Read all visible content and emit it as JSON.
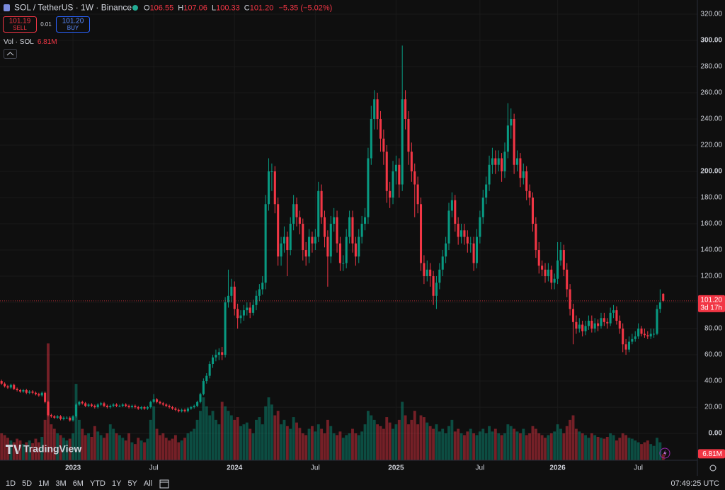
{
  "chart_data": {
    "type": "candlestick",
    "header": {
      "symbol": "SOL / TetherUS · 1W · Binance",
      "open_label": "O",
      "open": "106.55",
      "high_label": "H",
      "high": "107.06",
      "low_label": "L",
      "low": "100.33",
      "close_label": "C",
      "close": "101.20",
      "change": "−5.35 (−5.02%)",
      "sell_price": "101.19",
      "sell": "SELL",
      "spread": "0.01",
      "buy_price": "101.20",
      "buy": "BUY"
    },
    "volume_title": "Vol · SOL",
    "volume_label": "6.81M",
    "price_label": "101.20",
    "countdown": "3d 17h",
    "brand": "TradingView",
    "up_color": "#089981",
    "down_color": "#f23645",
    "ylim": [
      -20.5,
      330.8
    ],
    "yticks": [
      {
        "value": 0,
        "label": "0.00"
      },
      {
        "value": 20,
        "label": "20.00"
      },
      {
        "value": 40,
        "label": "40.00"
      },
      {
        "value": 60,
        "label": "60.00"
      },
      {
        "value": 80,
        "label": "80.00"
      },
      {
        "value": 100,
        "label": "100.00"
      },
      {
        "value": 120,
        "label": "120.00"
      },
      {
        "value": 140,
        "label": "140.00"
      },
      {
        "value": 160,
        "label": "160.00"
      },
      {
        "value": 180,
        "label": "180.00"
      },
      {
        "value": 200,
        "label": "200.00"
      },
      {
        "value": 220,
        "label": "220.00"
      },
      {
        "value": 240,
        "label": "240.00"
      },
      {
        "value": 260,
        "label": "260.00"
      },
      {
        "value": 280,
        "label": "280.00"
      },
      {
        "value": 300,
        "label": "300.00"
      },
      {
        "value": 320,
        "label": "320.00"
      }
    ],
    "xlim": [
      -0.5,
      224
    ],
    "xticks": [
      {
        "value": 23,
        "label": "2023"
      },
      {
        "value": 49,
        "label": "Jul"
      },
      {
        "value": 75,
        "label": "2024"
      },
      {
        "value": 101,
        "label": "Jul"
      },
      {
        "value": 127,
        "label": "2025"
      },
      {
        "value": 154,
        "label": "Jul"
      },
      {
        "value": 179,
        "label": "2026"
      },
      {
        "value": 205,
        "label": "Jul"
      }
    ],
    "ohlc": [
      [
        40,
        41,
        37,
        38
      ],
      [
        38,
        39,
        35,
        36
      ],
      [
        36,
        37,
        34,
        35
      ],
      [
        35,
        38,
        34,
        37
      ],
      [
        37,
        38,
        33,
        34
      ],
      [
        34,
        35,
        32,
        33
      ],
      [
        33,
        34,
        31,
        32
      ],
      [
        32,
        34,
        31,
        33
      ],
      [
        33,
        34,
        30,
        31
      ],
      [
        31,
        33,
        30,
        32
      ],
      [
        32,
        33,
        30,
        31
      ],
      [
        31,
        32,
        29,
        30
      ],
      [
        30,
        31,
        28,
        29
      ],
      [
        29,
        32,
        28,
        31
      ],
      [
        31,
        32,
        23,
        24
      ],
      [
        24,
        25,
        13,
        14
      ],
      [
        14,
        15,
        12,
        13
      ],
      [
        13,
        14,
        11,
        12
      ],
      [
        12,
        14,
        11,
        13
      ],
      [
        13,
        14,
        10,
        11
      ],
      [
        11,
        13,
        10,
        12
      ],
      [
        12,
        13,
        11,
        12
      ],
      [
        12,
        13,
        9,
        10
      ],
      [
        10,
        14,
        9,
        13
      ],
      [
        13,
        23,
        12,
        22
      ],
      [
        22,
        25,
        21,
        24
      ],
      [
        24,
        25,
        22,
        23
      ],
      [
        23,
        24,
        20,
        21
      ],
      [
        21,
        23,
        20,
        22
      ],
      [
        22,
        23,
        20,
        21
      ],
      [
        21,
        22,
        19,
        20
      ],
      [
        20,
        23,
        19,
        22
      ],
      [
        22,
        24,
        21,
        23
      ],
      [
        23,
        24,
        20,
        21
      ],
      [
        21,
        22,
        19,
        20
      ],
      [
        20,
        22,
        19,
        21
      ],
      [
        21,
        23,
        20,
        22
      ],
      [
        22,
        23,
        20,
        21
      ],
      [
        21,
        22,
        20,
        21
      ],
      [
        21,
        23,
        20,
        22
      ],
      [
        22,
        23,
        20,
        21
      ],
      [
        21,
        22,
        19,
        20
      ],
      [
        20,
        22,
        19,
        21
      ],
      [
        21,
        22,
        19,
        20
      ],
      [
        20,
        21,
        18,
        19
      ],
      [
        19,
        21,
        18,
        20
      ],
      [
        20,
        21,
        18,
        19
      ],
      [
        19,
        21,
        18,
        20
      ],
      [
        20,
        25,
        19,
        24
      ],
      [
        24,
        30,
        23,
        26
      ],
      [
        26,
        27,
        23,
        24
      ],
      [
        24,
        25,
        22,
        23
      ],
      [
        23,
        24,
        21,
        22
      ],
      [
        22,
        23,
        20,
        21
      ],
      [
        21,
        22,
        19,
        20
      ],
      [
        20,
        21,
        18,
        19
      ],
      [
        19,
        20,
        17,
        18
      ],
      [
        18,
        19,
        16,
        17
      ],
      [
        17,
        19,
        16,
        18
      ],
      [
        18,
        19,
        16,
        17
      ],
      [
        17,
        20,
        16,
        19
      ],
      [
        19,
        21,
        18,
        20
      ],
      [
        20,
        22,
        19,
        21
      ],
      [
        21,
        25,
        20,
        24
      ],
      [
        24,
        31,
        23,
        30
      ],
      [
        30,
        42,
        29,
        40
      ],
      [
        40,
        46,
        38,
        44
      ],
      [
        44,
        55,
        42,
        53
      ],
      [
        53,
        60,
        50,
        58
      ],
      [
        58,
        64,
        55,
        60
      ],
      [
        60,
        65,
        56,
        62
      ],
      [
        62,
        66,
        56,
        60
      ],
      [
        60,
        104,
        58,
        100
      ],
      [
        100,
        125,
        96,
        105
      ],
      [
        105,
        118,
        100,
        112
      ],
      [
        112,
        116,
        90,
        95
      ],
      [
        95,
        99,
        80,
        88
      ],
      [
        88,
        94,
        84,
        90
      ],
      [
        90,
        98,
        86,
        94
      ],
      [
        94,
        100,
        90,
        96
      ],
      [
        96,
        100,
        88,
        92
      ],
      [
        92,
        102,
        90,
        98
      ],
      [
        98,
        109,
        94,
        105
      ],
      [
        105,
        114,
        101,
        110
      ],
      [
        110,
        120,
        106,
        115
      ],
      [
        115,
        182,
        110,
        175
      ],
      [
        175,
        210,
        170,
        200
      ],
      [
        200,
        206,
        185,
        200
      ],
      [
        200,
        204,
        168,
        175
      ],
      [
        175,
        180,
        128,
        135
      ],
      [
        135,
        150,
        128,
        145
      ],
      [
        145,
        158,
        138,
        150
      ],
      [
        150,
        154,
        120,
        140
      ],
      [
        140,
        165,
        136,
        160
      ],
      [
        160,
        182,
        155,
        175
      ],
      [
        175,
        180,
        158,
        165
      ],
      [
        165,
        170,
        152,
        160
      ],
      [
        160,
        164,
        132,
        140
      ],
      [
        140,
        146,
        128,
        135
      ],
      [
        135,
        156,
        130,
        150
      ],
      [
        150,
        154,
        138,
        145
      ],
      [
        145,
        156,
        140,
        150
      ],
      [
        150,
        192,
        146,
        185
      ],
      [
        185,
        190,
        160,
        165
      ],
      [
        165,
        170,
        142,
        150
      ],
      [
        150,
        155,
        112,
        135
      ],
      [
        135,
        166,
        130,
        160
      ],
      [
        160,
        172,
        154,
        165
      ],
      [
        165,
        170,
        138,
        145
      ],
      [
        145,
        150,
        124,
        130
      ],
      [
        130,
        136,
        124,
        130
      ],
      [
        130,
        156,
        126,
        150
      ],
      [
        150,
        170,
        145,
        165
      ],
      [
        165,
        170,
        138,
        145
      ],
      [
        145,
        150,
        128,
        135
      ],
      [
        135,
        156,
        130,
        150
      ],
      [
        150,
        166,
        145,
        160
      ],
      [
        160,
        172,
        155,
        165
      ],
      [
        165,
        218,
        160,
        210
      ],
      [
        210,
        250,
        205,
        240
      ],
      [
        240,
        262,
        232,
        255
      ],
      [
        255,
        260,
        232,
        240
      ],
      [
        240,
        246,
        215,
        225
      ],
      [
        225,
        232,
        205,
        215
      ],
      [
        215,
        220,
        176,
        185
      ],
      [
        185,
        192,
        172,
        180
      ],
      [
        180,
        208,
        175,
        200
      ],
      [
        200,
        212,
        190,
        205
      ],
      [
        205,
        210,
        180,
        190
      ],
      [
        190,
        296,
        185,
        255
      ],
      [
        255,
        262,
        232,
        240
      ],
      [
        240,
        246,
        205,
        215
      ],
      [
        215,
        222,
        192,
        200
      ],
      [
        200,
        206,
        165,
        190
      ],
      [
        190,
        196,
        168,
        175
      ],
      [
        175,
        180,
        124,
        130
      ],
      [
        130,
        136,
        114,
        120
      ],
      [
        120,
        132,
        116,
        125
      ],
      [
        125,
        130,
        112,
        120
      ],
      [
        120,
        124,
        98,
        105
      ],
      [
        105,
        120,
        95,
        115
      ],
      [
        115,
        130,
        110,
        125
      ],
      [
        125,
        140,
        120,
        135
      ],
      [
        135,
        150,
        130,
        145
      ],
      [
        145,
        176,
        140,
        170
      ],
      [
        170,
        184,
        165,
        178
      ],
      [
        178,
        182,
        154,
        160
      ],
      [
        160,
        165,
        144,
        150
      ],
      [
        150,
        160,
        145,
        155
      ],
      [
        155,
        160,
        144,
        150
      ],
      [
        150,
        155,
        138,
        145
      ],
      [
        145,
        150,
        138,
        145
      ],
      [
        145,
        150,
        124,
        130
      ],
      [
        130,
        156,
        126,
        150
      ],
      [
        150,
        170,
        145,
        165
      ],
      [
        165,
        186,
        160,
        180
      ],
      [
        180,
        196,
        175,
        190
      ],
      [
        190,
        212,
        185,
        205
      ],
      [
        205,
        218,
        198,
        210
      ],
      [
        210,
        216,
        198,
        205
      ],
      [
        205,
        216,
        200,
        210
      ],
      [
        210,
        214,
        192,
        200
      ],
      [
        200,
        222,
        195,
        215
      ],
      [
        215,
        252,
        210,
        235
      ],
      [
        235,
        248,
        225,
        240
      ],
      [
        240,
        244,
        198,
        205
      ],
      [
        205,
        216,
        200,
        210
      ],
      [
        210,
        214,
        188,
        195
      ],
      [
        195,
        206,
        190,
        200
      ],
      [
        200,
        204,
        178,
        185
      ],
      [
        185,
        190,
        174,
        180
      ],
      [
        180,
        184,
        154,
        160
      ],
      [
        160,
        165,
        134,
        140
      ],
      [
        140,
        146,
        122,
        128
      ],
      [
        128,
        132,
        120,
        125
      ],
      [
        125,
        130,
        115,
        120
      ],
      [
        120,
        130,
        116,
        125
      ],
      [
        125,
        128,
        110,
        115
      ],
      [
        115,
        122,
        110,
        118
      ],
      [
        118,
        146,
        114,
        132
      ],
      [
        132,
        146,
        128,
        140
      ],
      [
        140,
        144,
        120,
        125
      ],
      [
        125,
        130,
        104,
        110
      ],
      [
        110,
        114,
        90,
        95
      ],
      [
        95,
        99,
        68,
        85
      ],
      [
        85,
        90,
        76,
        80
      ],
      [
        80,
        88,
        77,
        83
      ],
      [
        83,
        86,
        74,
        78
      ],
      [
        78,
        86,
        75,
        82
      ],
      [
        82,
        90,
        79,
        86
      ],
      [
        86,
        90,
        77,
        80
      ],
      [
        80,
        88,
        77,
        84
      ],
      [
        84,
        87,
        78,
        82
      ],
      [
        82,
        92,
        80,
        88
      ],
      [
        88,
        92,
        82,
        85
      ],
      [
        85,
        88,
        80,
        84
      ],
      [
        84,
        96,
        82,
        92
      ],
      [
        92,
        98,
        88,
        94
      ],
      [
        94,
        97,
        83,
        86
      ],
      [
        86,
        90,
        76,
        80
      ],
      [
        80,
        84,
        62,
        68
      ],
      [
        68,
        72,
        60,
        64
      ],
      [
        64,
        74,
        62,
        70
      ],
      [
        70,
        76,
        68,
        72
      ],
      [
        72,
        78,
        70,
        74
      ],
      [
        74,
        84,
        72,
        80
      ],
      [
        80,
        82,
        74,
        76
      ],
      [
        76,
        80,
        73,
        75
      ],
      [
        75,
        78,
        72,
        74
      ],
      [
        74,
        80,
        72,
        76
      ],
      [
        76,
        80,
        73,
        76
      ],
      [
        76,
        98,
        75,
        95
      ],
      [
        95,
        110,
        92,
        100
      ],
      [
        106.55,
        107.06,
        100.33,
        101.2
      ]
    ],
    "volume": [
      30,
      28,
      25,
      22,
      20,
      24,
      22,
      18,
      20,
      22,
      19,
      24,
      20,
      26,
      45,
      130,
      40,
      35,
      30,
      28,
      25,
      22,
      24,
      30,
      85,
      45,
      35,
      28,
      30,
      26,
      38,
      32,
      28,
      25,
      30,
      40,
      35,
      30,
      28,
      25,
      22,
      30,
      20,
      18,
      25,
      22,
      20,
      24,
      45,
      60,
      35,
      28,
      30,
      25,
      22,
      24,
      28,
      20,
      22,
      25,
      30,
      32,
      35,
      45,
      55,
      70,
      60,
      50,
      55,
      45,
      40,
      65,
      60,
      55,
      50,
      45,
      48,
      38,
      40,
      42,
      35,
      30,
      45,
      48,
      40,
      60,
      70,
      62,
      50,
      55,
      40,
      45,
      38,
      35,
      48,
      42,
      36,
      30,
      28,
      35,
      38,
      32,
      40,
      35,
      30,
      45,
      38,
      30,
      28,
      32,
      25,
      28,
      30,
      35,
      30,
      28,
      32,
      40,
      55,
      50,
      45,
      40,
      38,
      35,
      48,
      42,
      35,
      40,
      45,
      65,
      50,
      40,
      45,
      55,
      40,
      50,
      48,
      42,
      38,
      35,
      40,
      32,
      35,
      30,
      38,
      45,
      32,
      35,
      30,
      28,
      32,
      35,
      30,
      28,
      32,
      35,
      30,
      38,
      32,
      35,
      30,
      28,
      30,
      40,
      38,
      35,
      32,
      30,
      35,
      28,
      30,
      38,
      35,
      30,
      28,
      25,
      28,
      30,
      32,
      40,
      35,
      30,
      38,
      45,
      50,
      35,
      32,
      30,
      28,
      25,
      30,
      28,
      26,
      25,
      24,
      26,
      30,
      28,
      22,
      25,
      30,
      28,
      25,
      24,
      22,
      20,
      18,
      20,
      22,
      18,
      16,
      25,
      20,
      6.81
    ]
  },
  "toolbar": {
    "ranges": [
      "1D",
      "5D",
      "1M",
      "3M",
      "6M",
      "YTD",
      "1Y",
      "5Y",
      "All"
    ],
    "clock": "07:49:25 UTC"
  }
}
